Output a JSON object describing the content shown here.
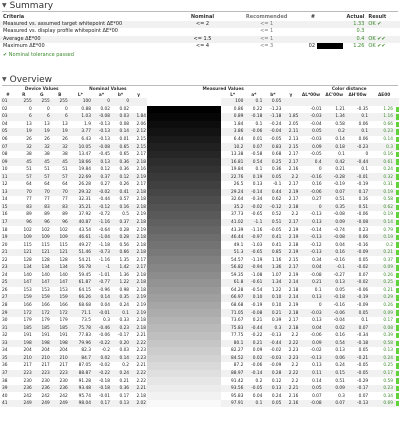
{
  "summary": {
    "title": "Summary",
    "headers": {
      "criteria": "Criteria",
      "nominal": "Nominal",
      "recommended": "Recommended",
      "num": "#",
      "actual": "Actual",
      "result": "Result"
    },
    "rows": [
      {
        "label": "Measured vs. assumed target whitepoint ΔE*00",
        "nominal": "<= 2",
        "recommended": "<= 1",
        "num": "",
        "actual": "1.33",
        "result": "OK ✔"
      },
      {
        "label": "Measured vs. display profile whitepoint ΔE*00",
        "nominal": "",
        "recommended": "<= 1",
        "num": "",
        "actual": "0.3",
        "result": ""
      },
      {
        "label": "Average ΔE*00",
        "nominal": "<= 1.5",
        "recommended": "<= 1",
        "num": "",
        "actual": "0.4",
        "result": "OK ✔✔"
      },
      {
        "label": "Maximum ΔE*00",
        "nominal": "<= 4",
        "recommended": "<= 3",
        "num": "02",
        "actual": "1.26",
        "result": "OK ✔✔"
      }
    ],
    "pass_text": "✔ Nominal tolerance passed"
  },
  "overview": {
    "title": "Overview",
    "group_headers": {
      "device": "Device Values",
      "nominal": "Nominal Values",
      "measured": "Measured Values",
      "distance": "Color distance"
    },
    "col_headers": [
      "#",
      "R",
      "G",
      "B",
      "L*",
      "a*",
      "b*",
      "γ",
      "",
      "L*",
      "a*",
      "b*",
      "γ",
      "ΔL*00w",
      "ΔC'00w",
      "ΔH'00w",
      "ΔE00"
    ],
    "rows": [
      [
        "01",
        "255",
        "255",
        "255",
        "100",
        "0",
        "0",
        "",
        "100",
        "0.1",
        "0.05",
        "",
        "",
        "",
        "",
        ""
      ],
      [
        "02",
        "0",
        "0",
        "0",
        "0.88",
        "0.02",
        "0.02",
        "",
        "0.86",
        "0.22",
        "-1.23",
        "",
        "-0.01",
        "1.21",
        "-0.35",
        "1.26"
      ],
      [
        "03",
        "6",
        "6",
        "6",
        "1.03",
        "-0.08",
        "0.03",
        "1.84",
        "0.89",
        "-0.18",
        "-1.18",
        "1.85",
        "-0.03",
        "1.34",
        "0.1",
        "1.16"
      ],
      [
        "04",
        "13",
        "13",
        "13",
        "1.9",
        "-0.13",
        "0.08",
        "2.06",
        "1.84",
        "0.1",
        "-0.24",
        "2.05",
        "-0.04",
        "0.58",
        "0.06",
        "0.66"
      ],
      [
        "05",
        "19",
        "19",
        "19",
        "3.77",
        "-0.13",
        "0.14",
        "2.12",
        "3.86",
        "-0.06",
        "-0.04",
        "2.11",
        "0.05",
        "0.2",
        "0.1",
        "0.23"
      ],
      [
        "06",
        "26",
        "26",
        "26",
        "6.43",
        "-0.13",
        "0.01",
        "2.15",
        "6.44",
        "0.01",
        "-0.05",
        "2.13",
        "-0.03",
        "0.14",
        "0.06",
        "0.14"
      ],
      [
        "07",
        "32",
        "32",
        "32",
        "10.05",
        "-0.08",
        "0.65",
        "2.15",
        "10.2",
        "0.07",
        "0.83",
        "2.15",
        "0.09",
        "0.18",
        "-0.23",
        "0.3"
      ],
      [
        "08",
        "38",
        "38",
        "38",
        "13.47",
        "-0.45",
        "0.65",
        "2.17",
        "13.38",
        "-0.58",
        "0.68",
        "2.17",
        "-0.05",
        "0.1",
        "0",
        "0.16"
      ],
      [
        "09",
        "45",
        "45",
        "45",
        "18.66",
        "0.13",
        "0.36",
        "2.18",
        "16.81",
        "0.54",
        "0.25",
        "2.17",
        "0.4",
        "0.42",
        "-0.44",
        "0.61"
      ],
      [
        "10",
        "51",
        "51",
        "51",
        "19.84",
        "0.12",
        "0.36",
        "2.16",
        "19.84",
        "0.1",
        "0.36",
        "2.16",
        "0",
        "0.21",
        "0.1",
        "0.24"
      ],
      [
        "11",
        "57",
        "57",
        "57",
        "22.69",
        "0.37",
        "0.12",
        "2.19",
        "22.76",
        "0.19",
        "0.05",
        "2.2",
        "-0.16",
        "-0.28",
        "-0.01",
        "0.32"
      ],
      [
        "12",
        "64",
        "64",
        "64",
        "26.28",
        "0.27",
        "0.26",
        "2.17",
        "26.5",
        "0.13",
        "-0.1",
        "2.17",
        "0.16",
        "-0.19",
        "-0.19",
        "0.31"
      ],
      [
        "13",
        "70",
        "70",
        "70",
        "29.32",
        "-0.02",
        "0.41",
        "2.18",
        "29.24",
        "-0.14",
        "0.44",
        "2.19",
        "-0.06",
        "0.07",
        "0.17",
        "0.19"
      ],
      [
        "14",
        "77",
        "77",
        "77",
        "32.31",
        "-0.44",
        "0.57",
        "2.18",
        "32.64",
        "-0.34",
        "0.62",
        "2.17",
        "0.27",
        "0.51",
        "0.16",
        "0.58"
      ],
      [
        "15",
        "83",
        "83",
        "83",
        "35.21",
        "-0.12",
        "0.16",
        "2.18",
        "35.2",
        "-0.02",
        "-0.12",
        "2.18",
        "0",
        "0.35",
        "0.51",
        "0.62"
      ],
      [
        "16",
        "89",
        "89",
        "89",
        "37.92",
        "-0.72",
        "0.5",
        "2.19",
        "37.73",
        "-0.65",
        "0.52",
        "2.2",
        "-0.13",
        "-0.08",
        "-0.06",
        "0.19"
      ],
      [
        "17",
        "96",
        "96",
        "96",
        "40.87",
        "-1.16",
        "0.37",
        "2.18",
        "41.02",
        "-1.1",
        "0.51",
        "2.17",
        "0.13",
        "0.09",
        "-0.08",
        "0.14"
      ],
      [
        "18",
        "102",
        "102",
        "102",
        "43.54",
        "-0.64",
        "0.28",
        "2.19",
        "43.39",
        "-1.16",
        "-0.05",
        "2.19",
        "-0.14",
        "-0.74",
        "0.23",
        "0.79"
      ],
      [
        "19",
        "109",
        "109",
        "109",
        "46.61",
        "-1.04",
        "0.28",
        "2.18",
        "46.44",
        "-0.97",
        "0.41",
        "2.19",
        "-0.13",
        "-0.08",
        "0.06",
        "0.19"
      ],
      [
        "20",
        "115",
        "115",
        "115",
        "49.27",
        "-1.18",
        "0.56",
        "2.18",
        "49.1",
        "-1.03",
        "0.41",
        "2.18",
        "-0.12",
        "0.04",
        "-0.16",
        "0.2"
      ],
      [
        "21",
        "121",
        "121",
        "121",
        "51.46",
        "-0.73",
        "0.66",
        "2.18",
        "51.3",
        "-0.65",
        "0.85",
        "2.19",
        "-0.13",
        "0.16",
        "-0.09",
        "0.21"
      ],
      [
        "22",
        "128",
        "128",
        "128",
        "54.21",
        "-1.16",
        "1.35",
        "2.17",
        "54.57",
        "-1.19",
        "1.16",
        "2.15",
        "0.34",
        "-0.16",
        "0.05",
        "0.37"
      ],
      [
        "23",
        "134",
        "134",
        "134",
        "56.78",
        "-1",
        "1.42",
        "2.17",
        "56.82",
        "-0.94",
        "1.36",
        "2.17",
        "0.04",
        "-0.1",
        "-0.02",
        "0.09"
      ],
      [
        "24",
        "140",
        "140",
        "140",
        "59.45",
        "-1.01",
        "1.36",
        "2.18",
        "59.35",
        "-1.08",
        "1.07",
        "2.19",
        "-0.08",
        "-0.27",
        "0.07",
        "0.26"
      ],
      [
        "25",
        "147",
        "147",
        "147",
        "61.87",
        "-0.77",
        "1.22",
        "2.18",
        "61.8",
        "-0.61",
        "1.34",
        "2.14",
        "0.21",
        "0.13",
        "-0.02",
        "0.25"
      ],
      [
        "26",
        "153",
        "153",
        "153",
        "64.15",
        "-0.96",
        "0.98",
        "2.18",
        "64.28",
        "-0.54",
        "1.22",
        "2.18",
        "0.1",
        "0.05",
        "-0.06",
        "0.21"
      ],
      [
        "27",
        "159",
        "159",
        "159",
        "66.26",
        "0.14",
        "0.35",
        "2.19",
        "66.97",
        "0.10",
        "0.10",
        "2.14",
        "0.13",
        "-0.18",
        "-0.19",
        "0.29"
      ],
      [
        "28",
        "166",
        "166",
        "166",
        "68.68",
        "0.04",
        "0.24",
        "2.19",
        "68.68",
        "-0.19",
        "0.10",
        "2.19",
        "0",
        "-0.16",
        "-0.09",
        "0.26"
      ],
      [
        "29",
        "172",
        "172",
        "172",
        "71.1",
        "-0.01",
        "0.1",
        "2.19",
        "71.05",
        "-0.08",
        "0.21",
        "2.18",
        "-0.03",
        "-0.06",
        "0.05",
        "0.09"
      ],
      [
        "30",
        "179",
        "179",
        "179",
        "73.5",
        "0.3",
        "0.33",
        "2.18",
        "73.67",
        "0.21",
        "0.39",
        "2.17",
        "0.13",
        "-0.04",
        "0.1",
        "0.17"
      ],
      [
        "31",
        "185",
        "185",
        "185",
        "75.78",
        "-0.46",
        "0.23",
        "2.18",
        "75.83",
        "-0.44",
        "0.3",
        "2.18",
        "0.04",
        "0.02",
        "0.07",
        "0.08"
      ],
      [
        "32",
        "191",
        "191",
        "191",
        "77.83",
        "-0.06",
        "-0.17",
        "2.21",
        "77.75",
        "-0.22",
        "-0.13",
        "2.2",
        "-0.06",
        "0.16",
        "-0.34",
        "0.39"
      ],
      [
        "33",
        "198",
        "198",
        "198",
        "79.96",
        "-0.22",
        "0.20",
        "2.22",
        "80.1",
        "0.21",
        "-0.44",
        "2.22",
        "0.09",
        "0.54",
        "-0.18",
        "0.58"
      ],
      [
        "34",
        "204",
        "204",
        "204",
        "82.3",
        "-0.2",
        "0.03",
        "2.23",
        "82.27",
        "0.09",
        "-0.02",
        "2.23",
        "-0.02",
        "0.13",
        "0.05",
        "0.13"
      ],
      [
        "35",
        "210",
        "210",
        "210",
        "84.7",
        "0.02",
        "0.14",
        "2.23",
        "84.52",
        "0.02",
        "-0.03",
        "2.23",
        "-0.13",
        "0.06",
        "-0.21",
        "0.24"
      ],
      [
        "36",
        "217",
        "217",
        "217",
        "87.05",
        "-0.02",
        "0.2",
        "2.21",
        "87.2",
        "-0.06",
        "-0.09",
        "2.2",
        "0.13",
        "0.24",
        "-0.05",
        "0.25"
      ],
      [
        "37",
        "223",
        "223",
        "223",
        "88.87",
        "-0.22",
        "0.24",
        "2.22",
        "88.97",
        "-0.14",
        "0.28",
        "2.22",
        "0.11",
        "0.15",
        "-0.05",
        "0.17"
      ],
      [
        "38",
        "230",
        "230",
        "230",
        "91.28",
        "-0.18",
        "0.21",
        "2.22",
        "91.42",
        "0.2",
        "0.12",
        "2.2",
        "0.14",
        "0.51",
        "-0.29",
        "0.59"
      ],
      [
        "39",
        "236",
        "236",
        "236",
        "93.48",
        "-0.18",
        "0.36",
        "2.21",
        "93.56",
        "-0.05",
        "0.13",
        "2.21",
        "0.05",
        "0.09",
        "-0.17",
        "0.23"
      ],
      [
        "40",
        "242",
        "242",
        "242",
        "95.74",
        "-0.01",
        "0.17",
        "2.18",
        "95.83",
        "0.04",
        "0.24",
        "2.16",
        "0.07",
        "0.3",
        "0.07",
        "0.34"
      ],
      [
        "41",
        "249",
        "249",
        "249",
        "98.04",
        "0.17",
        "0.13",
        "2.02",
        "97.91",
        "0.1",
        "0.05",
        "2.16",
        "-0.08",
        "0.07",
        "-0.13",
        "0.69"
      ]
    ],
    "colors": {
      "ok": "#3a8a2a",
      "bar": "#62d23a",
      "stripe": "#f1f1f1"
    }
  }
}
